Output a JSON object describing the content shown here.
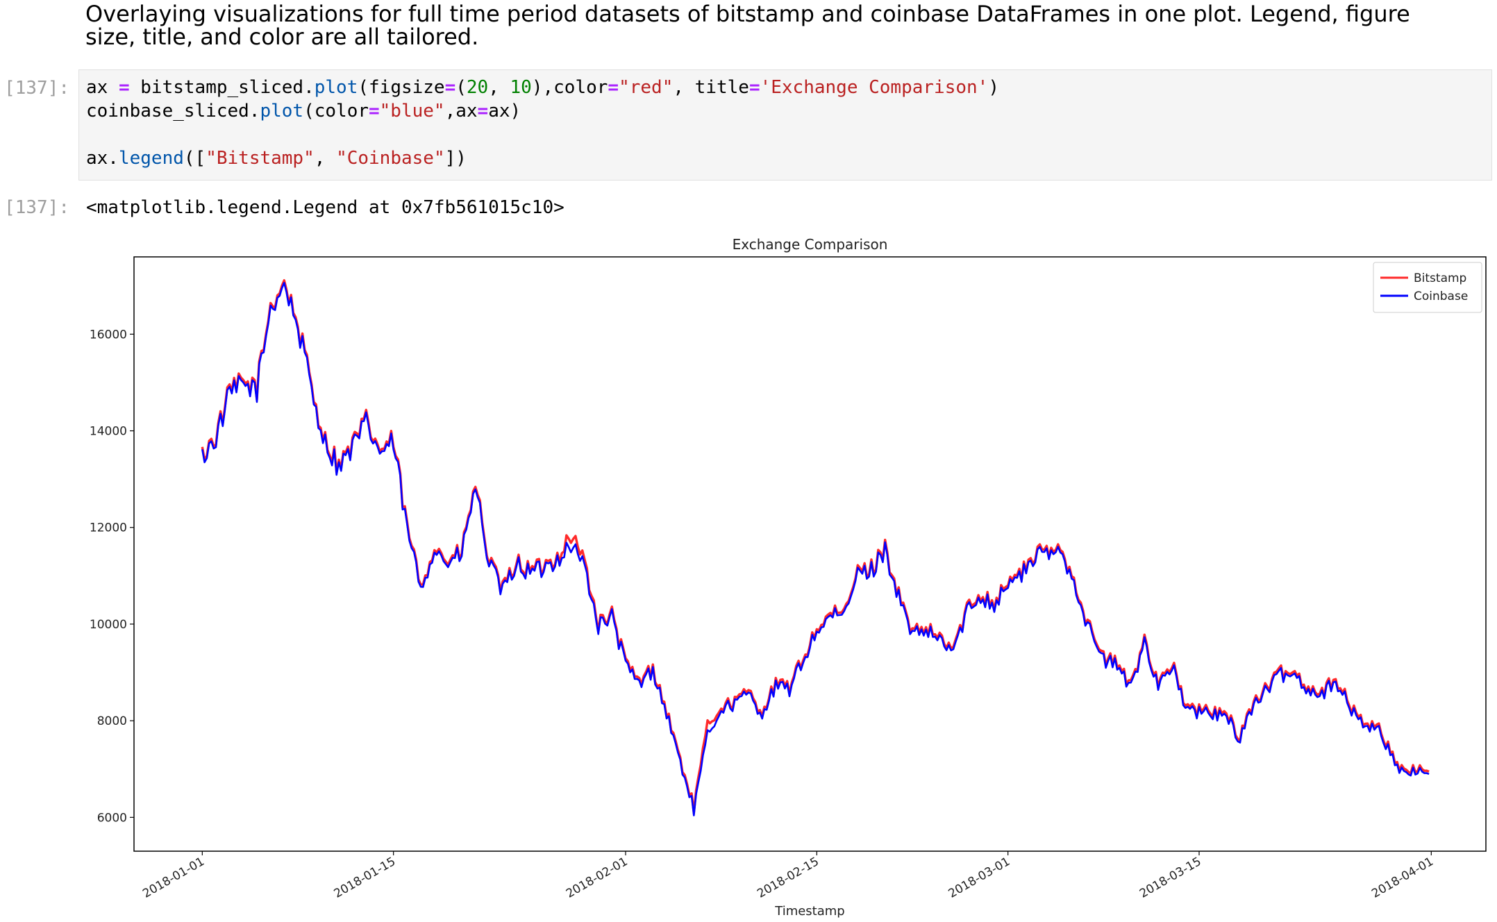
{
  "markdown": {
    "heading": "Overlaying visualizations for full time period datasets of bitstamp and coinbase DataFrames in one plot. Legend, figure size, title, and color are all tailored."
  },
  "cells": {
    "input_prompt": "[137]:",
    "output_prompt": "[137]:",
    "output_text": "<matplotlib.legend.Legend at 0x7fb561015c10>"
  },
  "code": {
    "line1": {
      "a": "ax ",
      "b": "=",
      "c": " bitstamp_sliced.",
      "d": "plot",
      "e": "(figsize",
      "f": "=",
      "g": "(",
      "h": "20",
      "i": ", ",
      "j": "10",
      "k": "),color",
      "l": "=",
      "m": "\"red\"",
      "n": ", title",
      "o": "=",
      "p": "'Exchange Comparison'",
      "q": ")"
    },
    "line2": {
      "a": "coinbase_sliced.",
      "b": "plot",
      "c": "(color",
      "d": "=",
      "e": "\"blue\"",
      "f": ",ax",
      "g": "=",
      "h": "ax)"
    },
    "line4": {
      "a": "ax.",
      "b": "legend",
      "c": "([",
      "d": "\"Bitstamp\"",
      "e": ", ",
      "f": "\"Coinbase\"",
      "g": "])"
    }
  },
  "chart_data": {
    "type": "line",
    "title": "Exchange Comparison",
    "xlabel": "Timestamp",
    "ylabel": "",
    "x_ticks": [
      "2018-01-01",
      "2018-01-15",
      "2018-02-01",
      "2018-02-15",
      "2018-03-01",
      "2018-03-15",
      "2018-04-01"
    ],
    "y_ticks": [
      6000,
      8000,
      10000,
      12000,
      14000,
      16000
    ],
    "xlim": [
      "2017-12-27",
      "2018-04-05"
    ],
    "ylim": [
      5300,
      17600
    ],
    "legend_position": "top-right",
    "grid": false,
    "x": [
      "2018-01-01",
      "2018-01-02",
      "2018-01-03",
      "2018-01-04",
      "2018-01-05",
      "2018-01-06",
      "2018-01-07",
      "2018-01-08",
      "2018-01-09",
      "2018-01-10",
      "2018-01-11",
      "2018-01-12",
      "2018-01-13",
      "2018-01-14",
      "2018-01-15",
      "2018-01-16",
      "2018-01-17",
      "2018-01-18",
      "2018-01-19",
      "2018-01-20",
      "2018-01-21",
      "2018-01-22",
      "2018-01-23",
      "2018-01-24",
      "2018-01-25",
      "2018-01-26",
      "2018-01-27",
      "2018-01-28",
      "2018-01-29",
      "2018-01-30",
      "2018-01-31",
      "2018-02-01",
      "2018-02-02",
      "2018-02-03",
      "2018-02-04",
      "2018-02-05",
      "2018-02-06",
      "2018-02-07",
      "2018-02-08",
      "2018-02-09",
      "2018-02-10",
      "2018-02-11",
      "2018-02-12",
      "2018-02-13",
      "2018-02-14",
      "2018-02-15",
      "2018-02-16",
      "2018-02-17",
      "2018-02-18",
      "2018-02-19",
      "2018-02-20",
      "2018-02-21",
      "2018-02-22",
      "2018-02-23",
      "2018-02-24",
      "2018-02-25",
      "2018-02-26",
      "2018-02-27",
      "2018-02-28",
      "2018-03-01",
      "2018-03-02",
      "2018-03-03",
      "2018-03-04",
      "2018-03-05",
      "2018-03-06",
      "2018-03-07",
      "2018-03-08",
      "2018-03-09",
      "2018-03-10",
      "2018-03-11",
      "2018-03-12",
      "2018-03-13",
      "2018-03-14",
      "2018-03-15",
      "2018-03-16",
      "2018-03-17",
      "2018-03-18",
      "2018-03-19",
      "2018-03-20",
      "2018-03-21",
      "2018-03-22",
      "2018-03-23",
      "2018-03-24",
      "2018-03-25",
      "2018-03-26",
      "2018-03-27",
      "2018-03-28",
      "2018-03-29",
      "2018-03-30",
      "2018-03-31"
    ],
    "series": [
      {
        "name": "Bitstamp",
        "color": "#ff2a2a",
        "values": [
          13500,
          13900,
          14800,
          15000,
          14900,
          16600,
          17100,
          16200,
          14900,
          13800,
          13300,
          13700,
          14200,
          13600,
          13800,
          12000,
          10800,
          11600,
          11300,
          11500,
          12900,
          11300,
          10700,
          11300,
          11100,
          11200,
          11400,
          11850,
          11300,
          10000,
          10200,
          9200,
          8800,
          9100,
          8200,
          7200,
          6200,
          7900,
          8300,
          8400,
          8600,
          8200,
          8750,
          8700,
          9300,
          9900,
          10200,
          10200,
          11100,
          11150,
          11600,
          10600,
          9800,
          9900,
          9700,
          9500,
          10300,
          10650,
          10450,
          10900,
          11050,
          11450,
          11500,
          11550,
          10800,
          9900,
          9300,
          9200,
          8700,
          9700,
          8800,
          9200,
          8300,
          8200,
          8200,
          8100,
          7700,
          8400,
          8700,
          9000,
          9000,
          8700,
          8600,
          8900,
          8300,
          8000,
          7900,
          7400,
          6900,
          7000
        ]
      },
      {
        "name": "Coinbase",
        "color": "#0000ff",
        "values": [
          13450,
          13850,
          14750,
          14950,
          14850,
          16550,
          17050,
          16150,
          14850,
          13750,
          13250,
          13650,
          14150,
          13550,
          13750,
          11950,
          10750,
          11550,
          11250,
          11450,
          12850,
          11250,
          10650,
          11250,
          11050,
          11150,
          11350,
          11650,
          11200,
          9950,
          10150,
          9150,
          8750,
          9050,
          8150,
          7150,
          6150,
          7700,
          8250,
          8350,
          8550,
          8150,
          8700,
          8650,
          9250,
          9850,
          10150,
          10150,
          11050,
          11100,
          11550,
          10550,
          9750,
          9850,
          9650,
          9450,
          10250,
          10600,
          10400,
          10850,
          11000,
          11400,
          11450,
          11500,
          10750,
          9850,
          9250,
          9150,
          8650,
          9650,
          8750,
          9150,
          8250,
          8150,
          8150,
          8050,
          7650,
          8350,
          8650,
          8950,
          8950,
          8650,
          8550,
          8850,
          8250,
          7950,
          7850,
          7350,
          6850,
          6950
        ]
      }
    ]
  }
}
